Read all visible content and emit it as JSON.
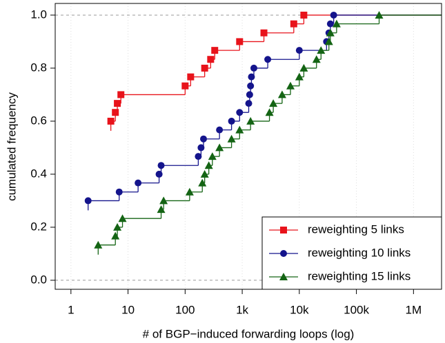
{
  "chart_data": {
    "type": "ecdf",
    "x_label": "# of BGP−induced forwarding loops (log)",
    "y_label": "cumulated frequency",
    "log_x": true,
    "grid": true,
    "legend": "bottom-right",
    "xlim": [
      0.53,
      3100000
    ],
    "ylim": [
      -0.034,
      1.044
    ],
    "xticks": [
      1,
      10,
      100,
      {
        "value": 1000,
        "label": "1k"
      },
      {
        "value": 10000,
        "label": "10k"
      },
      {
        "value": 100000,
        "label": "100k"
      },
      {
        "value": 1000000,
        "label": "1M"
      }
    ],
    "yticks": [
      {
        "value": 0,
        "label": "0.0"
      },
      0.2,
      0.4,
      0.6,
      0.8,
      {
        "value": 1,
        "label": "1.0"
      }
    ],
    "series": [
      {
        "name": "reweighting 5 links",
        "color": "#e8131b",
        "marker": "square",
        "x": [
          5,
          6,
          6.5,
          7.5,
          100,
          125,
          220,
          280,
          330,
          900,
          2400,
          8000,
          12000
        ],
        "values": [
          0.6,
          0.633,
          0.667,
          0.7,
          0.733,
          0.767,
          0.8,
          0.833,
          0.867,
          0.9,
          0.933,
          0.967,
          1.0
        ]
      },
      {
        "name": "reweighting 10 links",
        "color": "#14148c",
        "marker": "circle",
        "x": [
          2,
          7,
          15,
          35,
          38,
          170,
          190,
          210,
          400,
          650,
          900,
          1300,
          1350,
          1400,
          1450,
          1600,
          2800,
          10000,
          30000,
          33000,
          35000,
          40000
        ],
        "values": [
          0.3,
          0.333,
          0.367,
          0.4,
          0.433,
          0.467,
          0.5,
          0.533,
          0.567,
          0.6,
          0.633,
          0.667,
          0.7,
          0.733,
          0.767,
          0.8,
          0.833,
          0.867,
          0.9,
          0.933,
          0.967,
          1.0
        ]
      },
      {
        "name": "reweighting 15 links",
        "color": "#146414",
        "marker": "triangle",
        "x": [
          3,
          6,
          6.5,
          8,
          38,
          42,
          120,
          200,
          220,
          260,
          300,
          400,
          650,
          900,
          1400,
          3000,
          3500,
          5000,
          7000,
          10000,
          12000,
          20000,
          24000,
          33000,
          35000,
          45000,
          250000
        ],
        "values": [
          0.133,
          0.167,
          0.2,
          0.233,
          0.267,
          0.3,
          0.333,
          0.367,
          0.4,
          0.433,
          0.467,
          0.5,
          0.533,
          0.567,
          0.6,
          0.633,
          0.667,
          0.7,
          0.733,
          0.767,
          0.8,
          0.833,
          0.867,
          0.9,
          0.933,
          0.967,
          1.0
        ]
      }
    ]
  }
}
